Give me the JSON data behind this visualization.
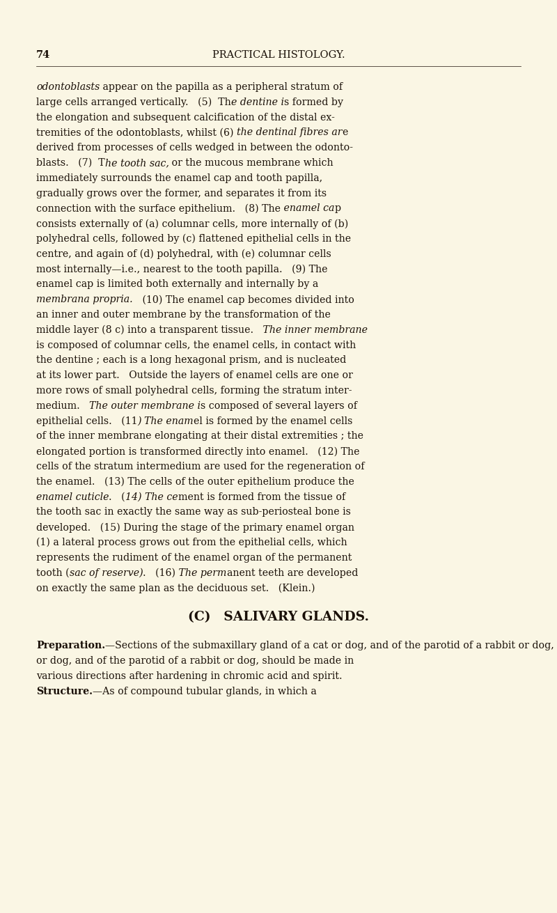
{
  "bg_color": "#faf6e4",
  "text_color": "#1a1008",
  "page_number": "74",
  "header": "PRACTICAL HISTOLOGY.",
  "body_text": "odontoblasts appear on the papilla as a peripheral stratum of large cells arranged vertically.  (5) The dentine is formed by the elongation and subsequent calcification of the distal extremities of the odontoblasts, whilst (6) the dentinal fibres are derived from processes of cells wedged in between the odontoblasts.  (7) The tooth sac, or the mucous membrane which immediately surrounds the enamel cap and tooth papilla, gradually grows over the former, and separates it from its connection with the surface epithelium.  (8) The enamel cap consists externally of (a) columnar cells, more internally of (b) polyhedral cells, followed by (c) flattened epithelial cells in the centre, and again of (d) polyhedral, with (e) columnar cells most internally—i.e., nearest to the tooth papilla.  (9) The enamel cap is limited both externally and internally by a membrana propria.  (10) The enamel cap becomes divided into an inner and outer membrane by the transformation of the middle layer (8 c) into a transparent tissue.  The inner membrane is composed of columnar cells, the enamel cells, in contact with the dentine ; each is a long hexagonal prism, and is nucleated at its lower part.  Outside the layers of enamel cells are one or more rows of small polyhedral cells, forming the stratum intermedium.  The outer membrane is composed of several layers of epithelial cells.  (11) The enamel is formed by the enamel cells of the inner membrane elongating at their distal extremities ; the elongated portion is transformed directly into enamel.  (12) The cells of the stratum intermedium are used for the regeneration of the enamel.  (13) The cells of the outer epithelium produce the enamel cuticle.  (14) The cement is formed from the tissue of the tooth sac in exactly the same way as sub-periosteal bone is developed.  (15) During the stage of the primary enamel organ (1) a lateral process grows out from the epithelial cells, which represents the rudiment of the enamel organ of the permanent tooth (sac of reserve).  (16) The permanent teeth are developed on exactly the same plan as the deciduous set.  (Klein.)",
  "section_header": "(C) SALIVARY GLANDS.",
  "prep_bold": "Preparation.",
  "prep_rest": "—Sections of the submaxillary gland of a cat or dog, and of the parotid of a rabbit or dog, should be made in various directions after hardening in chromic acid and spirit.",
  "struct_bold": "Structure.",
  "struct_rest": "—As of compound tubular glands, in which a"
}
